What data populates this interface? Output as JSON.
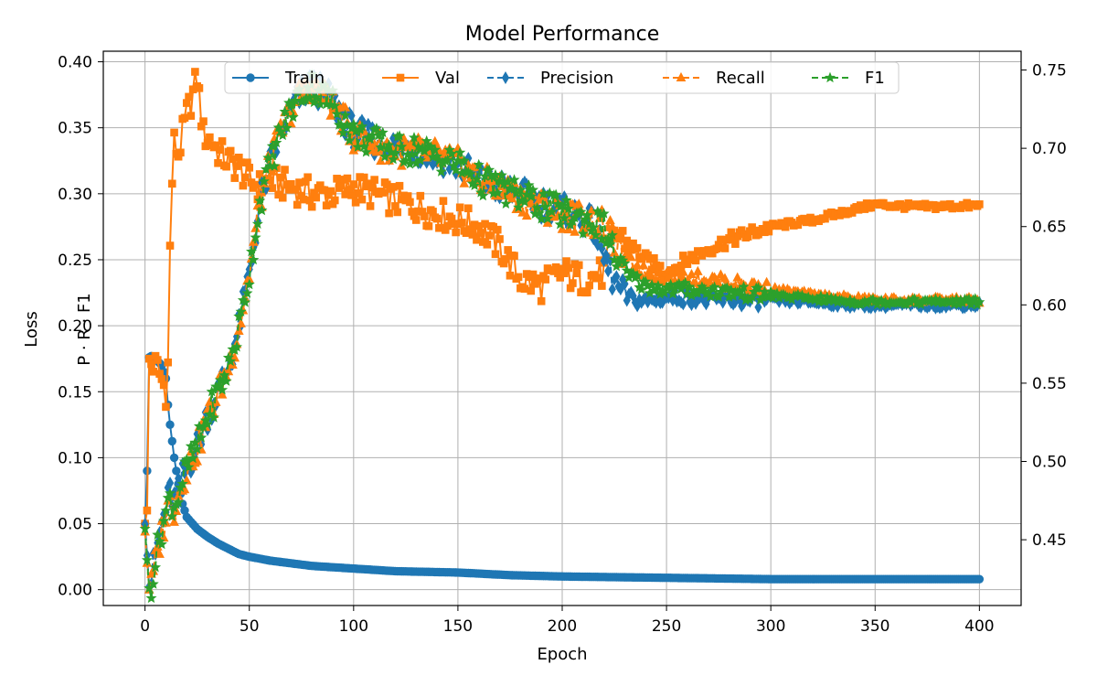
{
  "chart_data": {
    "type": "line",
    "title": "Model Performance",
    "xlabel": "Epoch",
    "ylabel_left": "Loss",
    "ylabel_right_inner": "P · R · F1",
    "xlim": [
      -20,
      420
    ],
    "ylim_left": [
      -0.012,
      0.408
    ],
    "ylim_right": [
      0.408,
      0.762
    ],
    "x_ticks": [
      0,
      50,
      100,
      150,
      200,
      250,
      300,
      350,
      400
    ],
    "y_ticks_left": [
      0.0,
      0.05,
      0.1,
      0.15,
      0.2,
      0.25,
      0.3,
      0.35,
      0.4
    ],
    "y_ticks_right": [
      0.45,
      0.5,
      0.55,
      0.6,
      0.65,
      0.7,
      0.75
    ],
    "grid": true,
    "legend_position": "top-center",
    "series": [
      {
        "name": "Train",
        "axis": "left",
        "color": "#1f77b4",
        "marker": "circle",
        "linestyle": "solid",
        "x": [
          0,
          1,
          2,
          3,
          5,
          8,
          10,
          11,
          12,
          14,
          16,
          18,
          20,
          25,
          30,
          35,
          40,
          45,
          50,
          60,
          70,
          80,
          90,
          100,
          120,
          150,
          175,
          200,
          250,
          300,
          350,
          400
        ],
        "y": [
          0.05,
          0.09,
          0.176,
          0.177,
          0.175,
          0.17,
          0.16,
          0.14,
          0.125,
          0.1,
          0.08,
          0.065,
          0.055,
          0.046,
          0.04,
          0.035,
          0.031,
          0.027,
          0.025,
          0.022,
          0.02,
          0.018,
          0.017,
          0.016,
          0.014,
          0.013,
          0.011,
          0.01,
          0.009,
          0.008,
          0.008,
          0.008
        ]
      },
      {
        "name": "Val",
        "axis": "left",
        "color": "#ff7f0e",
        "marker": "square",
        "linestyle": "solid",
        "x": [
          0,
          1,
          2,
          3,
          6,
          10,
          11,
          12,
          13,
          14,
          16,
          18,
          20,
          22,
          25,
          28,
          32,
          36,
          40,
          45,
          50,
          55,
          60,
          70,
          80,
          90,
          100,
          110,
          120,
          130,
          140,
          150,
          160,
          170,
          180,
          190,
          200,
          210,
          220,
          225,
          230,
          240,
          250,
          260,
          270,
          280,
          290,
          300,
          320,
          340,
          350,
          370,
          400
        ],
        "y": [
          0.05,
          0.06,
          0.175,
          0.172,
          0.168,
          0.15,
          0.17,
          0.258,
          0.31,
          0.338,
          0.33,
          0.345,
          0.36,
          0.37,
          0.388,
          0.345,
          0.34,
          0.33,
          0.325,
          0.32,
          0.31,
          0.305,
          0.31,
          0.305,
          0.3,
          0.3,
          0.305,
          0.3,
          0.295,
          0.29,
          0.285,
          0.28,
          0.275,
          0.26,
          0.235,
          0.23,
          0.24,
          0.235,
          0.24,
          0.27,
          0.265,
          0.25,
          0.24,
          0.25,
          0.258,
          0.265,
          0.27,
          0.275,
          0.28,
          0.288,
          0.292,
          0.29,
          0.291
        ]
      },
      {
        "name": "Precision",
        "axis": "right",
        "color": "#1f77b4",
        "marker": "thin_diamond",
        "linestyle": "dashed",
        "x": [
          0,
          1,
          2,
          3,
          5,
          8,
          10,
          12,
          14,
          16,
          18,
          20,
          25,
          30,
          35,
          40,
          45,
          50,
          55,
          60,
          65,
          70,
          75,
          80,
          90,
          100,
          110,
          120,
          130,
          140,
          150,
          160,
          170,
          180,
          190,
          200,
          210,
          215,
          220,
          225,
          230,
          240,
          250,
          260,
          270,
          280,
          290,
          300,
          320,
          340,
          350,
          370,
          400
        ],
        "y": [
          0.46,
          0.44,
          0.42,
          0.425,
          0.44,
          0.46,
          0.47,
          0.48,
          0.475,
          0.48,
          0.49,
          0.495,
          0.51,
          0.53,
          0.545,
          0.56,
          0.585,
          0.62,
          0.665,
          0.69,
          0.71,
          0.725,
          0.735,
          0.74,
          0.73,
          0.71,
          0.705,
          0.7,
          0.7,
          0.695,
          0.69,
          0.68,
          0.675,
          0.67,
          0.665,
          0.66,
          0.655,
          0.65,
          0.63,
          0.615,
          0.605,
          0.602,
          0.605,
          0.605,
          0.603,
          0.603,
          0.603,
          0.603,
          0.602,
          0.6,
          0.6,
          0.6,
          0.6
        ]
      },
      {
        "name": "Recall",
        "axis": "right",
        "color": "#ff7f0e",
        "marker": "triangle",
        "linestyle": "dashed",
        "x": [
          0,
          1,
          2,
          3,
          5,
          8,
          10,
          12,
          14,
          16,
          18,
          20,
          25,
          30,
          35,
          40,
          45,
          50,
          55,
          60,
          65,
          70,
          75,
          80,
          90,
          100,
          110,
          120,
          130,
          140,
          150,
          160,
          170,
          180,
          190,
          200,
          210,
          220,
          225,
          230,
          240,
          250,
          260,
          270,
          280,
          290,
          300,
          320,
          340,
          350,
          370,
          400
        ],
        "y": [
          0.455,
          0.435,
          0.418,
          0.42,
          0.435,
          0.455,
          0.465,
          0.475,
          0.47,
          0.478,
          0.488,
          0.495,
          0.508,
          0.528,
          0.543,
          0.56,
          0.585,
          0.62,
          0.665,
          0.69,
          0.71,
          0.725,
          0.735,
          0.74,
          0.728,
          0.708,
          0.703,
          0.698,
          0.698,
          0.695,
          0.69,
          0.68,
          0.675,
          0.668,
          0.663,
          0.658,
          0.655,
          0.65,
          0.64,
          0.63,
          0.62,
          0.618,
          0.618,
          0.616,
          0.614,
          0.612,
          0.61,
          0.606,
          0.604,
          0.603,
          0.603,
          0.603
        ]
      },
      {
        "name": "F1",
        "axis": "right",
        "color": "#2ca02c",
        "marker": "star",
        "linestyle": "dashed",
        "x": [
          0,
          1,
          2,
          3,
          5,
          8,
          10,
          12,
          14,
          16,
          18,
          20,
          25,
          30,
          35,
          40,
          45,
          50,
          55,
          60,
          65,
          70,
          75,
          80,
          90,
          100,
          110,
          120,
          130,
          140,
          150,
          160,
          170,
          180,
          190,
          200,
          210,
          220,
          225,
          230,
          240,
          250,
          260,
          270,
          280,
          290,
          300,
          320,
          340,
          350,
          370,
          400
        ],
        "y": [
          0.457,
          0.437,
          0.419,
          0.422,
          0.437,
          0.457,
          0.467,
          0.477,
          0.472,
          0.479,
          0.489,
          0.495,
          0.509,
          0.529,
          0.544,
          0.56,
          0.585,
          0.62,
          0.665,
          0.69,
          0.71,
          0.725,
          0.735,
          0.74,
          0.729,
          0.709,
          0.704,
          0.699,
          0.699,
          0.695,
          0.69,
          0.68,
          0.675,
          0.669,
          0.664,
          0.659,
          0.655,
          0.65,
          0.632,
          0.62,
          0.612,
          0.61,
          0.61,
          0.609,
          0.608,
          0.607,
          0.606,
          0.604,
          0.602,
          0.602,
          0.602,
          0.602
        ]
      }
    ]
  }
}
